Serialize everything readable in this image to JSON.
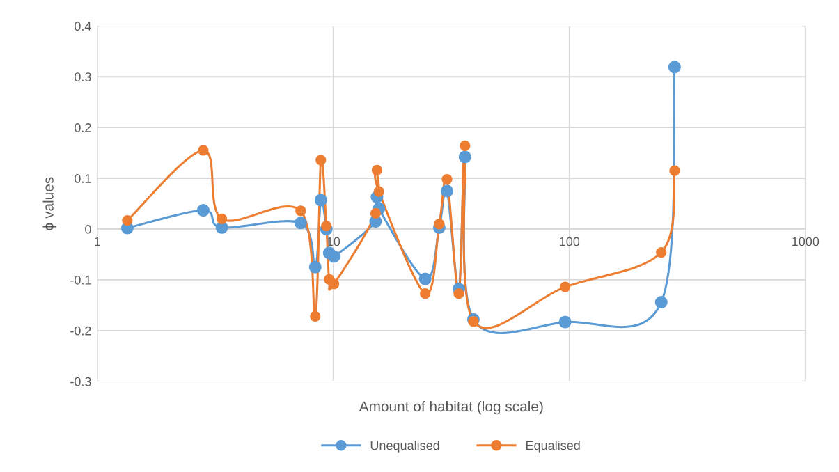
{
  "chart_data": {
    "type": "line",
    "xlabel": "Amount of habitat (log scale)",
    "ylabel": "ϕ values",
    "x": [
      1.34,
      2.81,
      3.37,
      7.27,
      8.38,
      8.85,
      9.34,
      9.6,
      10.06,
      15.1,
      15.3,
      15.6,
      24.5,
      28.1,
      30.3,
      34.0,
      36.1,
      39.2,
      95.9,
      245,
      279
    ],
    "series": [
      {
        "name": "Unequalised",
        "color": "#5b9bd5",
        "values": [
          0.002,
          0.037,
          0.003,
          0.012,
          -0.075,
          0.057,
          0.0,
          -0.047,
          -0.054,
          0.015,
          0.063,
          0.04,
          -0.098,
          0.003,
          0.075,
          -0.118,
          0.142,
          -0.178,
          -0.183,
          -0.144,
          0.319
        ]
      },
      {
        "name": "Equalised",
        "color": "#ed7d31",
        "values": [
          0.017,
          0.155,
          0.02,
          0.036,
          -0.172,
          0.136,
          0.006,
          -0.099,
          -0.108,
          0.031,
          0.116,
          0.074,
          -0.127,
          0.01,
          0.098,
          -0.127,
          0.164,
          -0.182,
          -0.114,
          -0.046,
          0.115
        ]
      }
    ],
    "log": "x",
    "xlim": [
      1,
      1000
    ],
    "xticks": [
      1,
      10,
      100,
      1000
    ],
    "ylim": [
      -0.3,
      0.4
    ],
    "yticks": [
      -0.3,
      -0.2,
      -0.1,
      0,
      0.1,
      0.2,
      0.3,
      0.4
    ],
    "grid": true,
    "legend": "bottom",
    "marker": "circle",
    "line_style": "solid"
  }
}
